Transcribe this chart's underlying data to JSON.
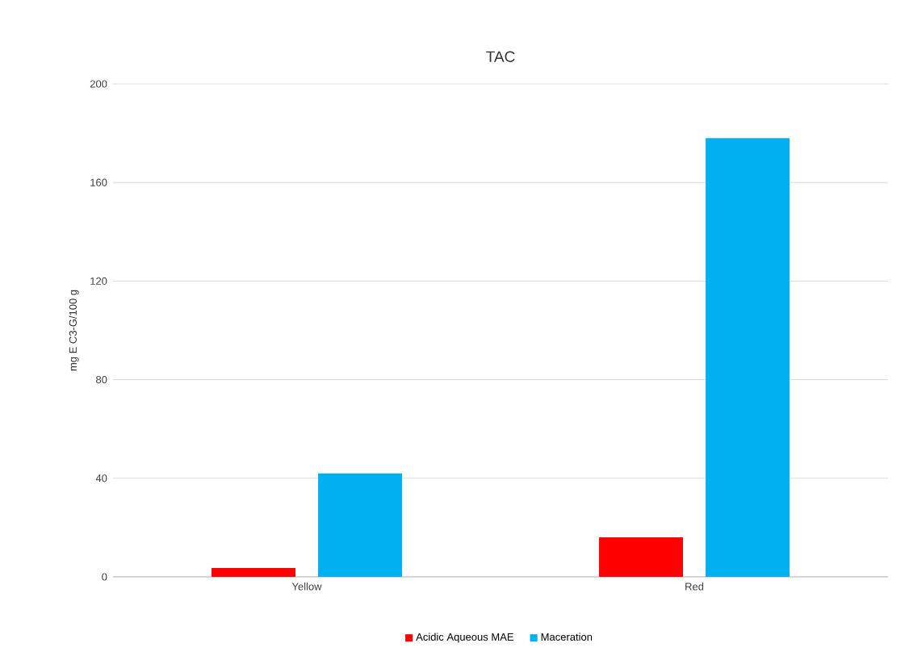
{
  "chart_data": {
    "type": "bar",
    "title": "TAC",
    "ylabel": "mg E C3-G/100 g",
    "categories": [
      "Yellow",
      "Red"
    ],
    "series": [
      {
        "name": "Acidic Aqueous MAE",
        "color": "#ff0000",
        "values": [
          3.6,
          16
        ]
      },
      {
        "name": "Maceration",
        "color": "#00b0f0",
        "values": [
          42,
          178
        ]
      }
    ],
    "ylim": [
      0,
      200
    ],
    "yticks": [
      0,
      40,
      80,
      120,
      160,
      200
    ],
    "grid": "y",
    "legend": "bottom"
  }
}
